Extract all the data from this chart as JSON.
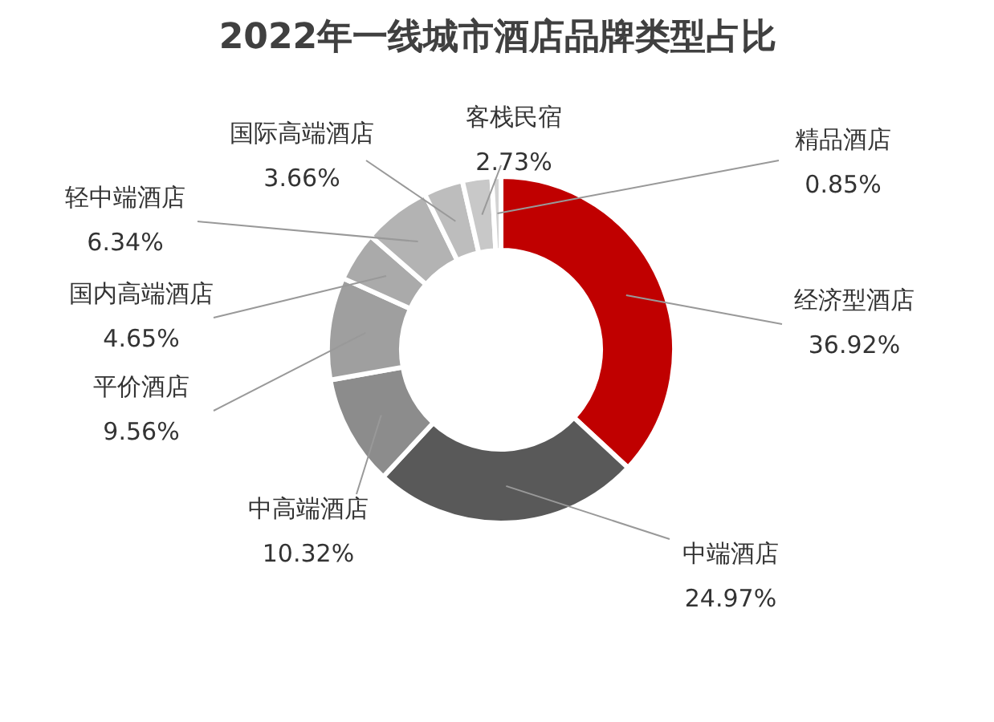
{
  "chart_data": {
    "type": "donut",
    "title": "2022年一线城市酒店品牌类型占比",
    "categories": [
      "经济型酒店",
      "中端酒店",
      "中高端酒店",
      "平价酒店",
      "国内高端酒店",
      "轻中端酒店",
      "国际高端酒店",
      "客栈民宿",
      "精品酒店"
    ],
    "values": [
      36.92,
      24.97,
      10.32,
      9.56,
      4.65,
      6.34,
      3.66,
      2.73,
      0.85
    ],
    "colors": [
      "#c00000",
      "#595959",
      "#8c8c8c",
      "#9f9f9f",
      "#aaaaaa",
      "#b3b3b3",
      "#bdbdbd",
      "#c8c8c8",
      "#d3d3d3"
    ],
    "value_labels": [
      "36.92%",
      "24.97%",
      "10.32%",
      "9.56%",
      "4.65%",
      "6.34%",
      "3.66%",
      "2.73%",
      "0.85%"
    ],
    "legend": false
  }
}
